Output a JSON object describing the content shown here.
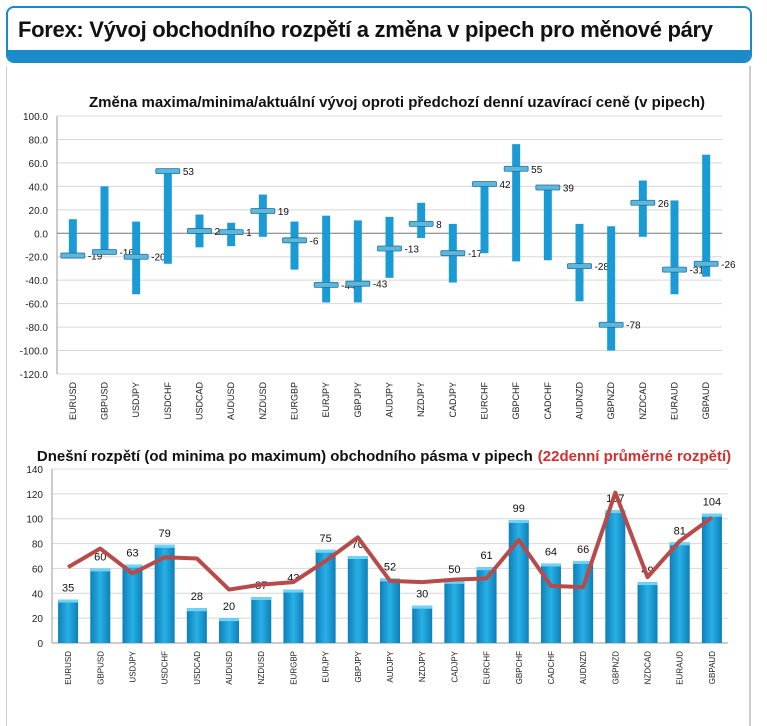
{
  "header": {
    "title": "Forex: Vývoj obchodního rozpětí a změna v pipech pro měnové páry"
  },
  "colors": {
    "bar": "#1a9bd6",
    "marker": "#5ab8e0",
    "line": "#b84a4a",
    "accent": "#1a8ac8",
    "title_red": "#d03030"
  },
  "chart_data": [
    {
      "type": "bar",
      "title": "Změna maxima/minima/aktuální vývoj oproti předchozí denní uzavírací ceně (v pipech)",
      "ylim": [
        -120,
        100
      ],
      "yticks": [
        "100.0",
        "80.0",
        "60.0",
        "40.0",
        "20.0",
        "0.0",
        "-20.0",
        "-40.0",
        "-60.0",
        "-80.0",
        "-100.0",
        "-120.0"
      ],
      "categories": [
        "EURUSD",
        "GBPUSD",
        "USDJPY",
        "USDCHF",
        "USDCAD",
        "AUDUSD",
        "NZDUSD",
        "EURGBP",
        "EURJPY",
        "GBPJPY",
        "AUDJPY",
        "NZDJPY",
        "CADJPY",
        "EURCHF",
        "GBPCHF",
        "CADCHF",
        "AUDNZD",
        "GBPNZD",
        "NZDCAD",
        "EURAUD",
        "GBPAUD"
      ],
      "series": [
        {
          "name": "high",
          "values": [
            12,
            40,
            10,
            53,
            16,
            9,
            33,
            10,
            15,
            11,
            14,
            26,
            8,
            42,
            76,
            41,
            8,
            6,
            45,
            28,
            67
          ]
        },
        {
          "name": "low",
          "values": [
            -21,
            -18,
            -52,
            -26,
            -12,
            -11,
            -3,
            -31,
            -59,
            -59,
            -38,
            -4,
            -42,
            -17,
            -24,
            -23,
            -58,
            -100,
            -3,
            -52,
            -37
          ]
        },
        {
          "name": "current",
          "values": [
            -19,
            -16,
            -20,
            53,
            2,
            1,
            19,
            -6,
            -44,
            -43,
            -13,
            8,
            -17,
            42,
            55,
            39,
            -28,
            -78,
            26,
            -31,
            -26
          ]
        }
      ],
      "grid": true
    },
    {
      "type": "bar",
      "title": "Dnešní rozpětí (od minima po maximum) obchodního pásma v pipech",
      "title_extra": "(22denní průměrné rozpětí)",
      "ylim": [
        0,
        140
      ],
      "yticks": [
        "140",
        "120",
        "100",
        "80",
        "60",
        "40",
        "20",
        "0"
      ],
      "categories": [
        "EURUSD",
        "GBPUSD",
        "USDJPY",
        "USDCHF",
        "USDCAD",
        "AUDUSD",
        "NZDUSD",
        "EURGBP",
        "EURJPY",
        "GBPJPY",
        "AUDJPY",
        "NZDJPY",
        "CADJPY",
        "EURCHF",
        "GBPCHF",
        "CADCHF",
        "AUDNZD",
        "GBPNZD",
        "NZDCAD",
        "EURAUD",
        "GBPAUD"
      ],
      "series": [
        {
          "name": "Dnešní rozpětí",
          "type": "bar",
          "values": [
            35,
            60,
            63,
            79,
            28,
            20,
            37,
            43,
            75,
            70,
            52,
            30,
            50,
            61,
            99,
            64,
            66,
            107,
            49,
            81,
            104
          ]
        },
        {
          "name": "22denní průměrné rozpětí",
          "type": "line",
          "values": [
            61,
            76,
            56,
            69,
            68,
            43,
            47,
            49,
            66,
            85,
            50,
            49,
            51,
            52,
            83,
            46,
            45,
            121,
            53,
            82,
            101
          ]
        }
      ],
      "grid": true
    }
  ]
}
